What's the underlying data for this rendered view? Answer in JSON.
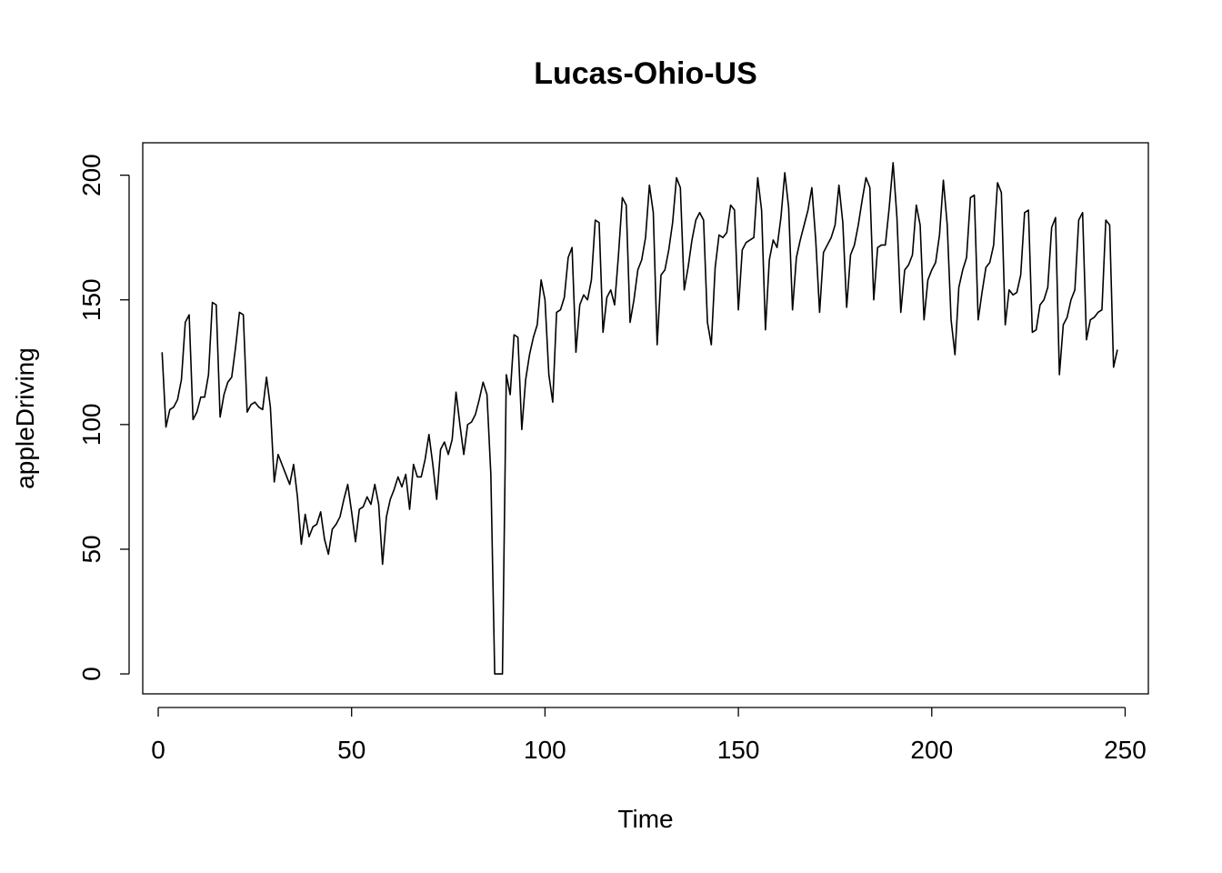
{
  "chart_data": {
    "type": "line",
    "title": "Lucas-Ohio-US",
    "xlabel": "Time",
    "ylabel": "appleDriving",
    "xlim": [
      -4,
      256
    ],
    "ylim": [
      -8,
      213
    ],
    "xticks": [
      0,
      50,
      100,
      150,
      200,
      250
    ],
    "yticks": [
      0,
      50,
      100,
      150,
      200
    ],
    "grid": false,
    "legend": "none",
    "line_color": "#000000",
    "series": [
      {
        "x_start": 1,
        "values": [
          129,
          99,
          106,
          107,
          110,
          118,
          141,
          144,
          102,
          105,
          111,
          111,
          120,
          149,
          148,
          103,
          112,
          117,
          119,
          131,
          145,
          144,
          105,
          108,
          109,
          107,
          106,
          119,
          107,
          77,
          88,
          84,
          80,
          76,
          84,
          71,
          52,
          64,
          55,
          59,
          60,
          65,
          54,
          48,
          58,
          60,
          63,
          70,
          76,
          65,
          53,
          66,
          67,
          71,
          68,
          76,
          68,
          44,
          63,
          70,
          74,
          79,
          75,
          80,
          66,
          84,
          79,
          79,
          86,
          96,
          84,
          70,
          90,
          93,
          88,
          94,
          113,
          100,
          88,
          100,
          101,
          104,
          110,
          117,
          112,
          80,
          0,
          0,
          0,
          120,
          112,
          136,
          135,
          98,
          118,
          128,
          135,
          140,
          158,
          150,
          120,
          109,
          145,
          146,
          151,
          167,
          171,
          129,
          148,
          152,
          150,
          158,
          182,
          181,
          137,
          151,
          154,
          148,
          168,
          191,
          188,
          141,
          150,
          162,
          166,
          175,
          196,
          185,
          132,
          160,
          162,
          170,
          181,
          199,
          195,
          154,
          163,
          174,
          182,
          185,
          182,
          141,
          132,
          163,
          176,
          175,
          177,
          188,
          186,
          146,
          170,
          173,
          174,
          175,
          199,
          186,
          138,
          166,
          174,
          171,
          183,
          201,
          187,
          146,
          167,
          174,
          180,
          186,
          195,
          174,
          145,
          169,
          172,
          175,
          180,
          196,
          181,
          147,
          168,
          172,
          180,
          190,
          199,
          195,
          150,
          171,
          172,
          172,
          187,
          205,
          183,
          145,
          162,
          164,
          168,
          188,
          180,
          142,
          158,
          162,
          165,
          176,
          198,
          180,
          142,
          128,
          155,
          162,
          167,
          191,
          192,
          142,
          153,
          163,
          165,
          172,
          197,
          193,
          140,
          154,
          152,
          153,
          160,
          185,
          186,
          137,
          138,
          148,
          150,
          155,
          179,
          183,
          120,
          140,
          143,
          150,
          154,
          182,
          185,
          134,
          142,
          143,
          145,
          146,
          182,
          180,
          123,
          130
        ]
      }
    ]
  }
}
